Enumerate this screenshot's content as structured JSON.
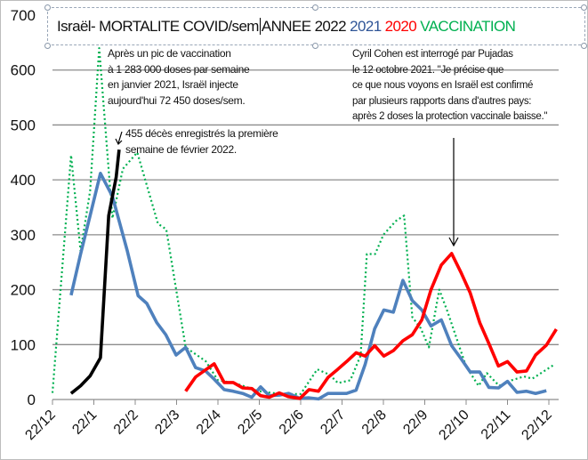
{
  "title": {
    "main": "Israël- MORTALITE COVID/sem",
    "year2022": "ANNEE 2022",
    "year2021": "2021",
    "year2020": "2020",
    "vaccination": "VACCINATION"
  },
  "annotations": {
    "vaccination_note": [
      "Après un pic de vaccination",
      "à 1 283 000 doses par semaine",
      "en janvier 2021, Israël injecte",
      "aujourd'hui 72 450 doses/sem."
    ],
    "deaths_note": [
      "455 décès enregistrés la première",
      "semaine de février 2022."
    ],
    "cohen_note": [
      "Cyril Cohen est interrogé par Pujadas",
      "le 12 octobre 2021. \"Je précise que",
      "ce que nous voyons en Israël est confirmé",
      "par plusieurs rapports dans d'autres pays:",
      "après 2 doses la protection vaccinale baisse.\""
    ]
  },
  "chart_data": {
    "type": "line",
    "title": "Israël- MORTALITE COVID/sem ANNEE 2022 2021 2020 VACCINATION",
    "xlabel": "",
    "ylabel": "",
    "ylim": [
      0,
      700
    ],
    "yticks": [
      "0",
      "100",
      "200",
      "300",
      "400",
      "500",
      "600",
      "700"
    ],
    "xticks": [
      "22/12",
      "22/1",
      "22/2",
      "22/3",
      "22/4",
      "22/5",
      "22/6",
      "22/7",
      "22/8",
      "22/9",
      "22/10",
      "22/11",
      "22/12"
    ],
    "x_unit": "months since first 22/12 tick",
    "grid": true,
    "colors": {
      "2022": "#000000",
      "2021": "#4f81bd",
      "2020": "#ff0000",
      "vaccination": "#00b050"
    },
    "series": [
      {
        "name": "2022",
        "style": "solid",
        "points": [
          [
            0.45,
            11
          ],
          [
            0.68,
            25
          ],
          [
            0.91,
            43
          ],
          [
            1.16,
            76
          ],
          [
            1.36,
            335
          ],
          [
            1.54,
            405
          ],
          [
            1.61,
            455
          ]
        ]
      },
      {
        "name": "2021",
        "style": "solid",
        "points": [
          [
            0.45,
            190
          ],
          [
            0.68,
            265
          ],
          [
            0.91,
            335
          ],
          [
            1.16,
            412
          ],
          [
            1.45,
            370
          ],
          [
            1.81,
            270
          ],
          [
            2.07,
            189
          ],
          [
            2.28,
            175
          ],
          [
            2.52,
            140
          ],
          [
            2.74,
            118
          ],
          [
            2.99,
            81
          ],
          [
            3.22,
            95
          ],
          [
            3.46,
            58
          ],
          [
            3.7,
            52
          ],
          [
            3.91,
            37
          ],
          [
            4.15,
            18
          ],
          [
            4.37,
            15
          ],
          [
            4.6,
            11
          ],
          [
            4.82,
            4
          ],
          [
            5.03,
            23
          ],
          [
            5.24,
            7
          ],
          [
            5.48,
            8
          ],
          [
            5.71,
            11
          ],
          [
            5.98,
            2
          ],
          [
            6.2,
            3
          ],
          [
            6.43,
            1
          ],
          [
            6.66,
            11
          ],
          [
            6.88,
            11
          ],
          [
            7.11,
            11
          ],
          [
            7.34,
            17
          ],
          [
            7.56,
            64
          ],
          [
            7.79,
            129
          ],
          [
            8.01,
            163
          ],
          [
            8.24,
            159
          ],
          [
            8.47,
            217
          ],
          [
            8.7,
            180
          ],
          [
            8.93,
            163
          ],
          [
            9.15,
            134
          ],
          [
            9.4,
            145
          ],
          [
            9.65,
            98
          ],
          [
            9.87,
            75
          ],
          [
            10.1,
            50
          ],
          [
            10.33,
            50
          ],
          [
            10.55,
            22
          ],
          [
            10.78,
            21
          ],
          [
            11.0,
            33
          ],
          [
            11.23,
            13
          ],
          [
            11.46,
            15
          ],
          [
            11.68,
            11
          ],
          [
            11.94,
            16
          ]
        ]
      },
      {
        "name": "2020",
        "style": "solid",
        "points": [
          [
            3.22,
            15
          ],
          [
            3.46,
            41
          ],
          [
            3.7,
            54
          ],
          [
            3.91,
            65
          ],
          [
            4.15,
            31
          ],
          [
            4.37,
            31
          ],
          [
            4.6,
            21
          ],
          [
            4.82,
            20
          ],
          [
            5.03,
            7
          ],
          [
            5.24,
            4
          ],
          [
            5.48,
            12
          ],
          [
            5.71,
            5
          ],
          [
            5.98,
            2
          ],
          [
            6.2,
            18
          ],
          [
            6.43,
            15
          ],
          [
            6.66,
            40
          ],
          [
            6.88,
            54
          ],
          [
            7.11,
            69
          ],
          [
            7.34,
            85
          ],
          [
            7.56,
            79
          ],
          [
            7.79,
            98
          ],
          [
            8.01,
            79
          ],
          [
            8.24,
            89
          ],
          [
            8.47,
            107
          ],
          [
            8.7,
            118
          ],
          [
            8.93,
            145
          ],
          [
            9.15,
            200
          ],
          [
            9.4,
            245
          ],
          [
            9.65,
            266
          ],
          [
            9.87,
            232
          ],
          [
            10.1,
            194
          ],
          [
            10.33,
            140
          ],
          [
            10.55,
            102
          ],
          [
            10.78,
            61
          ],
          [
            11.0,
            69
          ],
          [
            11.23,
            50
          ],
          [
            11.46,
            52
          ],
          [
            11.68,
            81
          ],
          [
            11.94,
            99
          ],
          [
            12.18,
            128
          ]
        ]
      },
      {
        "name": "vaccination",
        "style": "dotted",
        "points": [
          [
            0,
            12
          ],
          [
            0.45,
            445
          ],
          [
            0.68,
            270
          ],
          [
            0.91,
            380
          ],
          [
            1.13,
            640
          ],
          [
            1.45,
            330
          ],
          [
            1.7,
            420
          ],
          [
            2.05,
            450
          ],
          [
            2.55,
            320
          ],
          [
            2.75,
            310
          ],
          [
            3.22,
            95
          ],
          [
            3.7,
            70
          ],
          [
            4.0,
            35
          ],
          [
            4.4,
            30
          ],
          [
            5.0,
            15
          ],
          [
            5.5,
            10
          ],
          [
            6.0,
            10
          ],
          [
            6.4,
            55
          ],
          [
            6.7,
            45
          ],
          [
            6.9,
            30
          ],
          [
            7.2,
            35
          ],
          [
            7.45,
            80
          ],
          [
            7.6,
            265
          ],
          [
            7.8,
            265
          ],
          [
            8.0,
            300
          ],
          [
            8.3,
            325
          ],
          [
            8.5,
            335
          ],
          [
            8.7,
            150
          ],
          [
            8.9,
            130
          ],
          [
            9.1,
            95
          ],
          [
            9.35,
            200
          ],
          [
            9.55,
            160
          ],
          [
            10.0,
            60
          ],
          [
            10.3,
            25
          ],
          [
            10.5,
            48
          ],
          [
            10.8,
            25
          ],
          [
            11.1,
            35
          ],
          [
            11.4,
            42
          ],
          [
            11.6,
            38
          ],
          [
            12.1,
            62
          ]
        ]
      }
    ]
  }
}
